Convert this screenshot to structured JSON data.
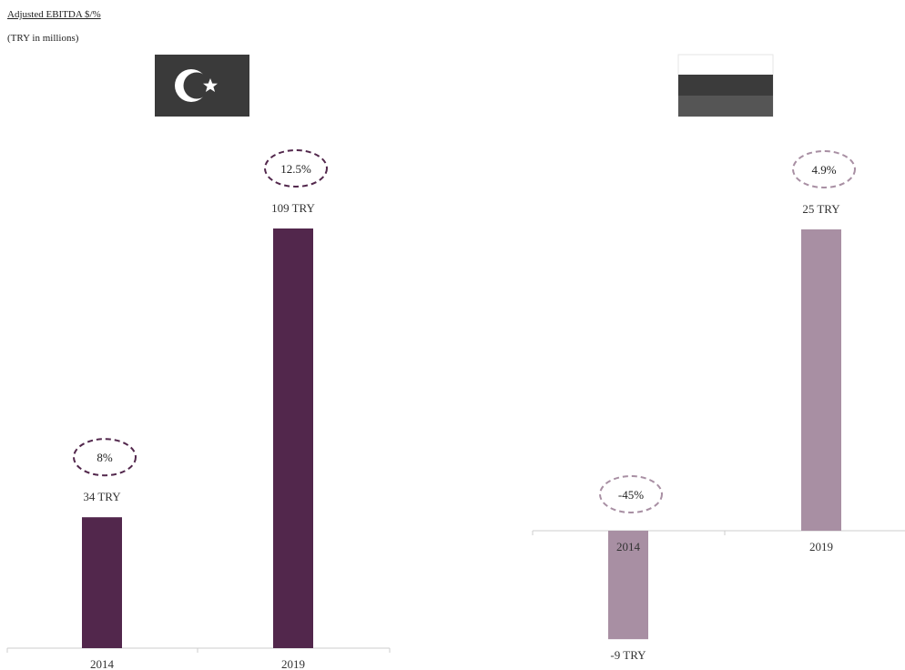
{
  "title": "Adjusted EBITDA $/%",
  "subtitle": "(TRY in millions)",
  "colors": {
    "turkey_bar": "#52274c",
    "russia_bar": "#a88fa3",
    "turkey_ring": "#52274c",
    "russia_ring": "#a88fa3",
    "axis": "#cccccc",
    "flag_dark": "#3a3a3a",
    "flag_mid": "#555555"
  },
  "flags": [
    {
      "icon": "turkey-flag-icon"
    },
    {
      "icon": "russia-flag-icon"
    }
  ],
  "chart_data": [
    {
      "type": "bar",
      "categories": [
        "2014",
        "2019"
      ],
      "values": [
        34,
        109
      ],
      "value_labels": [
        "34 TRY",
        "109 TRY"
      ],
      "margin_labels": [
        "8%",
        "12.5%"
      ],
      "ylim": [
        0,
        109
      ]
    },
    {
      "type": "bar",
      "categories": [
        "2014",
        "2019"
      ],
      "values": [
        -9,
        25
      ],
      "value_labels": [
        "-9 TRY",
        "25 TRY"
      ],
      "margin_labels": [
        "-45%",
        "4.9%"
      ],
      "ylim": [
        -9,
        25
      ]
    }
  ]
}
